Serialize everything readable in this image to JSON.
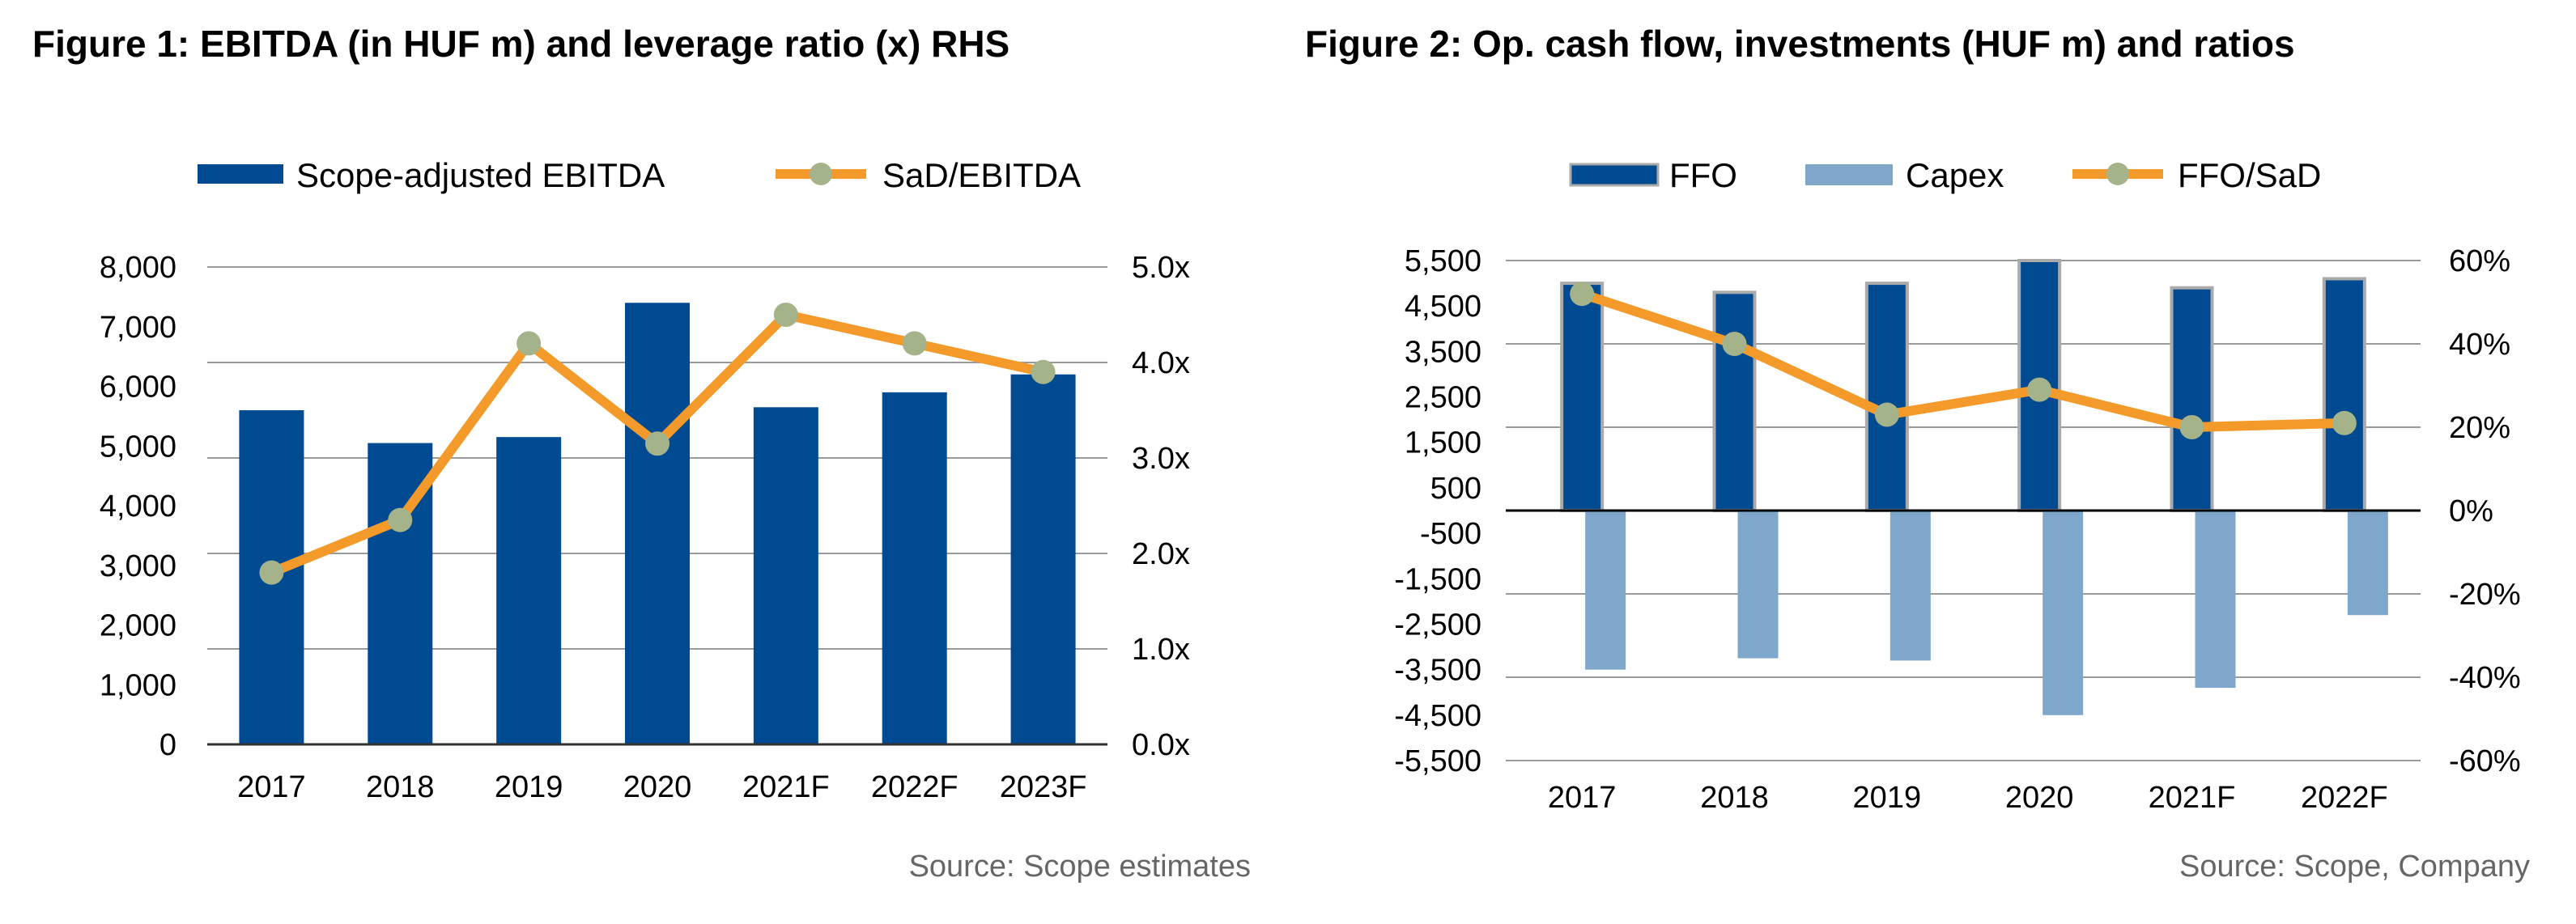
{
  "chart_data": [
    {
      "type": "bar",
      "title": "Figure 1: EBITDA (in HUF m) and leverage ratio (x) RHS",
      "source": "Source: Scope estimates",
      "categories": [
        "2017",
        "2018",
        "2019",
        "2020",
        "2021F",
        "2022F",
        "2023F"
      ],
      "series": [
        {
          "name": "Scope-adjusted EBITDA",
          "kind": "bar",
          "axis": "left",
          "color": "#004A91",
          "values": [
            5600,
            5050,
            5150,
            7400,
            5650,
            5900,
            6200
          ]
        },
        {
          "name": "SaD/EBITDA",
          "kind": "line",
          "axis": "right",
          "color": "#F39A2B",
          "marker_color": "#A4B38A",
          "values": [
            1.8,
            2.35,
            4.2,
            3.15,
            4.5,
            4.2,
            3.9
          ]
        }
      ],
      "y_left": {
        "ticks": [
          "8,000",
          "7,000",
          "6,000",
          "5,000",
          "4,000",
          "3,000",
          "2,000",
          "1,000",
          "0"
        ],
        "lim": [
          0,
          8000
        ]
      },
      "y_right": {
        "ticks": [
          "5.0x",
          "4.0x",
          "3.0x",
          "2.0x",
          "1.0x",
          "0.0x"
        ],
        "lim": [
          0,
          5
        ]
      },
      "grid": true,
      "legend_position": "top"
    },
    {
      "type": "bar",
      "title": "Figure 2: Op. cash flow, investments (HUF m) and ratios",
      "source": "Source: Scope, Company",
      "categories": [
        "2017",
        "2018",
        "2019",
        "2020",
        "2021F",
        "2022F"
      ],
      "series": [
        {
          "name": "FFO",
          "kind": "bar",
          "axis": "left",
          "color": "#004A91",
          "values": [
            5000,
            4800,
            5000,
            5500,
            4900,
            5100
          ]
        },
        {
          "name": "Capex",
          "kind": "bar",
          "axis": "left",
          "color": "#7FA7CC",
          "values": [
            -3500,
            -3250,
            -3300,
            -4500,
            -3900,
            -2300
          ]
        },
        {
          "name": "FFO/SaD",
          "kind": "line",
          "axis": "right",
          "color": "#F39A2B",
          "marker_color": "#A4B38A",
          "values": [
            52,
            40,
            23,
            29,
            20,
            21
          ]
        }
      ],
      "y_left": {
        "ticks": [
          "5,500",
          "4,500",
          "3,500",
          "2,500",
          "1,500",
          "500",
          "-500",
          "-1,500",
          "-2,500",
          "-3,500",
          "-4,500",
          "-5,500"
        ],
        "lim": [
          -5500,
          5500
        ]
      },
      "y_right": {
        "ticks": [
          "60%",
          "40%",
          "20%",
          "0%",
          "-20%",
          "-40%",
          "-60%"
        ],
        "lim": [
          -60,
          60
        ]
      },
      "grid": true,
      "legend_position": "top"
    }
  ]
}
